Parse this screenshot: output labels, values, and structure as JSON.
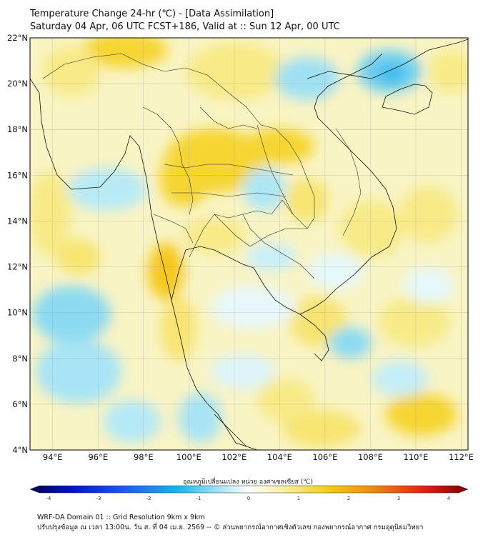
{
  "header": {
    "title_line1": "Temperature Change 24-hr (℃) - [Data Assimilation]",
    "title_line2": "Saturday 04 Apr, 06 UTC FCST+186, Valid at :: Sun 12 Apr, 00 UTC"
  },
  "map": {
    "lat_labels": [
      "22°N",
      "20°N",
      "18°N",
      "16°N",
      "14°N",
      "12°N",
      "10°N",
      "8°N",
      "6°N",
      "4°N"
    ],
    "lon_labels": [
      "94°E",
      "96°E",
      "98°E",
      "100°E",
      "102°E",
      "104°E",
      "106°E",
      "108°E",
      "110°E",
      "112°E"
    ],
    "lat_range": [
      4,
      22
    ],
    "lon_range": [
      93,
      112.3
    ]
  },
  "colorbar": {
    "title": "อุณหภูมิเปลี่ยนแปลง หน่วย องศาเซลเซียส (℃)",
    "tick_labels": [
      "-4",
      "-3",
      "-2",
      "-1",
      "0",
      "1",
      "2",
      "3",
      "4"
    ],
    "range": [
      -4,
      4
    ],
    "colors": [
      "#00004f",
      "#0016c8",
      "#1e5cf0",
      "#17b8f0",
      "#aeeaf6",
      "#ffffff",
      "#f7ef9a",
      "#f6cc1c",
      "#f08a14",
      "#e4200f",
      "#7a0000"
    ]
  },
  "footer": {
    "line1": "WRF-DA Domain 01 :: Grid Resolution 9km x 9km",
    "line2": "ปรับปรุงข้อมูล ณ เวลา 13:00น. วัน ส. ที่ 04 เม.ย. 2569 -- © ส่วนพยากรณ์อากาศเชิงตัวเลข กองพยากรณ์อากาศ กรมอุตุนิยมวิทยา"
  }
}
